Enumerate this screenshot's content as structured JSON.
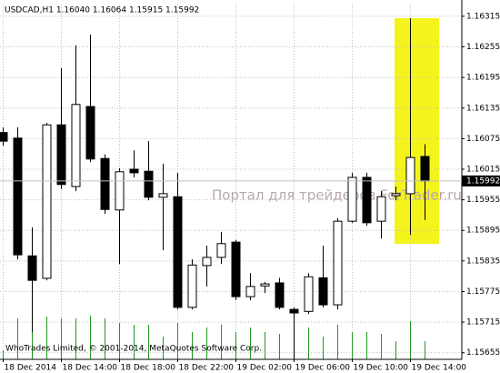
{
  "chart_data": {
    "type": "candlestick",
    "title": "USDCAD,H1 1.16040 1.16064 1.15915 1.15992",
    "watermark": "Портал для трейдеров ForTrader.ru",
    "copyright": "WhoTrades Limited, © 2001-2014, MetaQuotes Software Corp.",
    "categories": [
      "18 Dec 2014",
      null,
      null,
      null,
      "18 Dec 14:00",
      null,
      null,
      null,
      "18 Dec 18:00",
      null,
      null,
      null,
      "18 Dec 22:00",
      null,
      null,
      null,
      "19 Dec 02:00",
      null,
      null,
      null,
      "19 Dec 06:00",
      null,
      null,
      null,
      "19 Dec 10:00",
      null,
      null,
      null,
      "19 Dec 14:00",
      null
    ],
    "open": [
      1.16087,
      1.16076,
      1.15845,
      1.15801,
      1.16102,
      1.15981,
      1.16138,
      1.16036,
      1.15935,
      1.16015,
      1.16011,
      1.1596,
      1.15961,
      1.15744,
      1.15826,
      1.15842,
      1.15872,
      1.15765,
      1.15786,
      1.15792,
      1.1574,
      1.15736,
      1.15802,
      1.15749,
      1.15913,
      1.15999,
      1.15913,
      1.15963,
      1.15967,
      1.1604
    ],
    "high": [
      1.16097,
      1.16097,
      1.15901,
      1.16106,
      1.16213,
      1.16258,
      1.16279,
      1.16044,
      1.16017,
      1.16052,
      1.1607,
      1.16026,
      1.16008,
      1.15838,
      1.15865,
      1.15892,
      1.15876,
      1.15811,
      1.15794,
      1.15802,
      1.15744,
      1.15811,
      1.15865,
      1.15919,
      1.16008,
      1.16008,
      1.15972,
      1.15981,
      1.16311,
      1.16064
    ],
    "low": [
      1.16061,
      1.15838,
      1.15695,
      1.15797,
      1.15976,
      1.15972,
      1.16029,
      1.15927,
      1.15829,
      1.15999,
      1.15954,
      1.15856,
      1.1574,
      1.1574,
      1.15785,
      1.15829,
      1.15758,
      1.15758,
      1.15772,
      1.1574,
      1.15642,
      1.15731,
      1.15744,
      1.1574,
      1.1591,
      1.15904,
      1.15879,
      1.15954,
      1.15886,
      1.15915
    ],
    "close": [
      1.1607,
      1.15847,
      1.15797,
      1.16102,
      1.15985,
      1.16142,
      1.16035,
      1.15936,
      1.1601,
      1.16008,
      1.1596,
      1.15967,
      1.15744,
      1.15827,
      1.15842,
      1.15869,
      1.15765,
      1.15785,
      1.1579,
      1.15744,
      1.15733,
      1.15804,
      1.15749,
      1.15913,
      1.15999,
      1.1591,
      1.15961,
      1.15967,
      1.16038,
      1.15992
    ],
    "volume": [
      10,
      45,
      46,
      47,
      45,
      45,
      48,
      45,
      40,
      38,
      38,
      25,
      40,
      30,
      35,
      38,
      30,
      35,
      30,
      28,
      40,
      35,
      25,
      38,
      30,
      30,
      28,
      20,
      42,
      20
    ],
    "volume_color": "#1f9a1f",
    "bull_color": "#ffffff",
    "bear_color": "#000000",
    "current_price": 1.15992,
    "ylim": [
      1.15642,
      1.16338
    ],
    "yticks": [
      1.15655,
      1.15715,
      1.15775,
      1.15835,
      1.15895,
      1.15955,
      1.16015,
      1.16075,
      1.16135,
      1.16195,
      1.16255,
      1.16315
    ],
    "grid": true
  }
}
